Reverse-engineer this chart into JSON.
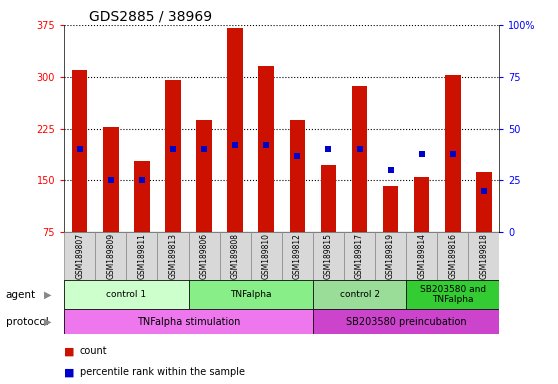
{
  "title": "GDS2885 / 38969",
  "samples": [
    "GSM189807",
    "GSM189809",
    "GSM189811",
    "GSM189813",
    "GSM189806",
    "GSM189808",
    "GSM189810",
    "GSM189812",
    "GSM189815",
    "GSM189817",
    "GSM189819",
    "GSM189814",
    "GSM189816",
    "GSM189818"
  ],
  "counts": [
    310,
    228,
    178,
    295,
    238,
    370,
    315,
    238,
    172,
    287,
    142,
    155,
    302,
    162
  ],
  "percentile_ranks": [
    40,
    25,
    25,
    40,
    40,
    42,
    42,
    37,
    40,
    40,
    30,
    38,
    38,
    20
  ],
  "ylim_left": [
    75,
    375
  ],
  "ylim_right": [
    0,
    100
  ],
  "yticks_left": [
    75,
    150,
    225,
    300,
    375
  ],
  "yticks_right": [
    0,
    25,
    50,
    75,
    100
  ],
  "agent_groups": [
    {
      "label": "control 1",
      "start": 0,
      "end": 3,
      "color": "#ccffcc"
    },
    {
      "label": "TNFalpha",
      "start": 4,
      "end": 7,
      "color": "#88ee88"
    },
    {
      "label": "control 2",
      "start": 8,
      "end": 10,
      "color": "#99dd99"
    },
    {
      "label": "SB203580 and\nTNFalpha",
      "start": 11,
      "end": 13,
      "color": "#33cc33"
    }
  ],
  "protocol_groups": [
    {
      "label": "TNFalpha stimulation",
      "start": 0,
      "end": 7,
      "color": "#ee77ee"
    },
    {
      "label": "SB203580 preincubation",
      "start": 8,
      "end": 13,
      "color": "#cc44cc"
    }
  ],
  "bar_color": "#cc1100",
  "dot_color": "#0000cc",
  "bar_width": 0.5,
  "tick_label_fontsize": 7,
  "title_fontsize": 10
}
